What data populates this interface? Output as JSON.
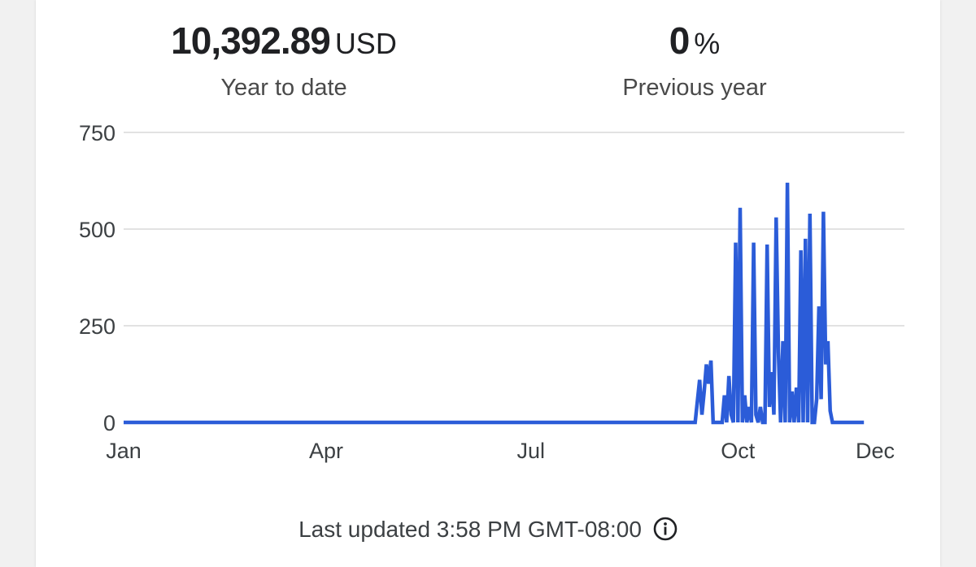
{
  "summary": {
    "ytd_value": "10,392.89",
    "ytd_unit": "USD",
    "ytd_label": "Year to date",
    "prev_value": "0",
    "prev_unit": "%",
    "prev_label": "Previous year"
  },
  "footer": {
    "last_updated": "Last updated 3:58 PM GMT-08:00",
    "info_icon": "info-circle-icon"
  },
  "colors": {
    "line": "#2b5cd8",
    "grid": "#e2e2e2"
  },
  "chart_data": {
    "type": "line",
    "title": "",
    "xlabel": "",
    "ylabel": "",
    "ylim": [
      0,
      750
    ],
    "yticks": [
      "0",
      "250",
      "500",
      "750"
    ],
    "xticks": [
      {
        "label": "Jan",
        "x": "Jan 1"
      },
      {
        "label": "Apr",
        "x": "Apr 1"
      },
      {
        "label": "Jul",
        "x": "Jul 1"
      },
      {
        "label": "Oct",
        "x": "Oct 1"
      },
      {
        "label": "Dec",
        "x": "Dec 1"
      }
    ],
    "grid": true,
    "x": [
      "Jan 1",
      "Sep 12",
      "Sep 14",
      "Sep 15",
      "Sep 16",
      "Sep 17",
      "Sep 18",
      "Sep 19",
      "Sep 20",
      "Sep 21",
      "Sep 22",
      "Sep 23",
      "Sep 24",
      "Sep 25",
      "Sep 26",
      "Sep 27",
      "Sep 28",
      "Sep 29",
      "Sep 30",
      "Oct 1",
      "Oct 2",
      "Oct 3",
      "Oct 4",
      "Oct 5",
      "Oct 6",
      "Oct 7",
      "Oct 8",
      "Oct 9",
      "Oct 10",
      "Oct 11",
      "Oct 12",
      "Oct 13",
      "Oct 14",
      "Oct 15",
      "Oct 16",
      "Oct 17",
      "Oct 18",
      "Oct 19",
      "Oct 20",
      "Oct 21",
      "Oct 22",
      "Oct 23",
      "Oct 24",
      "Oct 25",
      "Oct 26",
      "Oct 27",
      "Oct 28",
      "Oct 29",
      "Oct 30",
      "Oct 31",
      "Nov 1",
      "Nov 2",
      "Nov 3",
      "Nov 4",
      "Nov 5",
      "Nov 6",
      "Nov 7",
      "Nov 8",
      "Nov 9",
      "Nov 10",
      "Nov 11",
      "Nov 12",
      "Nov 13",
      "Nov 14",
      "Nov 15",
      "Nov 16",
      "Nov 17",
      "Nov 18",
      "Nov 19",
      "Nov 20",
      "Nov 21",
      "Nov 22",
      "Nov 23",
      "Nov 24",
      "Nov 25",
      "Nov 26"
    ],
    "series": [
      {
        "values": [
          0,
          0,
          110,
          20,
          80,
          150,
          100,
          160,
          0,
          0,
          0,
          0,
          0,
          70,
          0,
          120,
          20,
          0,
          465,
          0,
          555,
          0,
          70,
          0,
          40,
          0,
          465,
          20,
          0,
          40,
          0,
          0,
          460,
          40,
          130,
          20,
          530,
          180,
          0,
          210,
          0,
          620,
          0,
          80,
          0,
          90,
          0,
          445,
          0,
          475,
          0,
          540,
          0,
          0,
          60,
          300,
          60,
          545,
          150,
          210,
          30,
          0,
          0,
          0,
          0,
          0,
          0,
          0,
          0,
          0,
          0,
          0,
          0,
          0,
          0,
          0
        ]
      }
    ]
  }
}
